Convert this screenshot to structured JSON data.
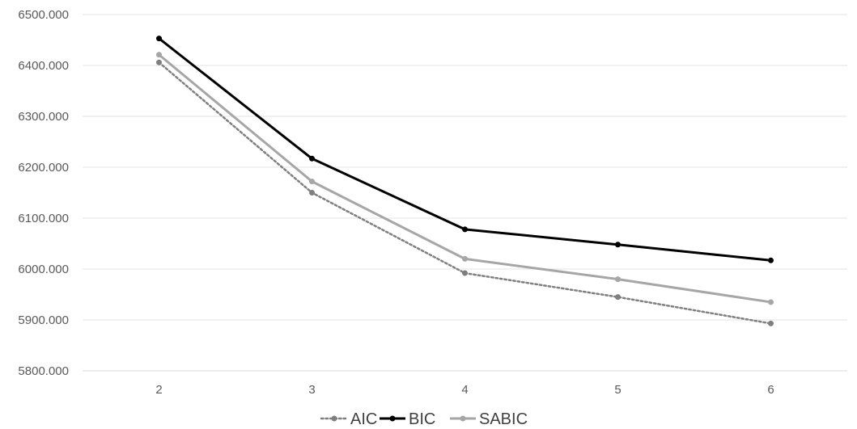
{
  "chart_data": {
    "type": "line",
    "categories": [
      "2",
      "3",
      "4",
      "5",
      "6"
    ],
    "y_tick_labels": [
      "5800.000",
      "5900.000",
      "6000.000",
      "6100.000",
      "6200.000",
      "6300.000",
      "6400.000",
      "6500.000"
    ],
    "ylim": [
      5800,
      6500
    ],
    "grid": true,
    "legend_position": "bottom",
    "series": [
      {
        "name": "AIC",
        "values": [
          6406,
          6150,
          5992,
          5945,
          5893
        ],
        "color": "#7f7f7f",
        "style": "dotted"
      },
      {
        "name": "BIC",
        "values": [
          6453,
          6217,
          6078,
          6048,
          6017
        ],
        "color": "#000000",
        "style": "solid"
      },
      {
        "name": "SABIC",
        "values": [
          6421,
          6172,
          6020,
          5980,
          5935
        ],
        "color": "#a6a6a6",
        "style": "solid"
      }
    ]
  }
}
